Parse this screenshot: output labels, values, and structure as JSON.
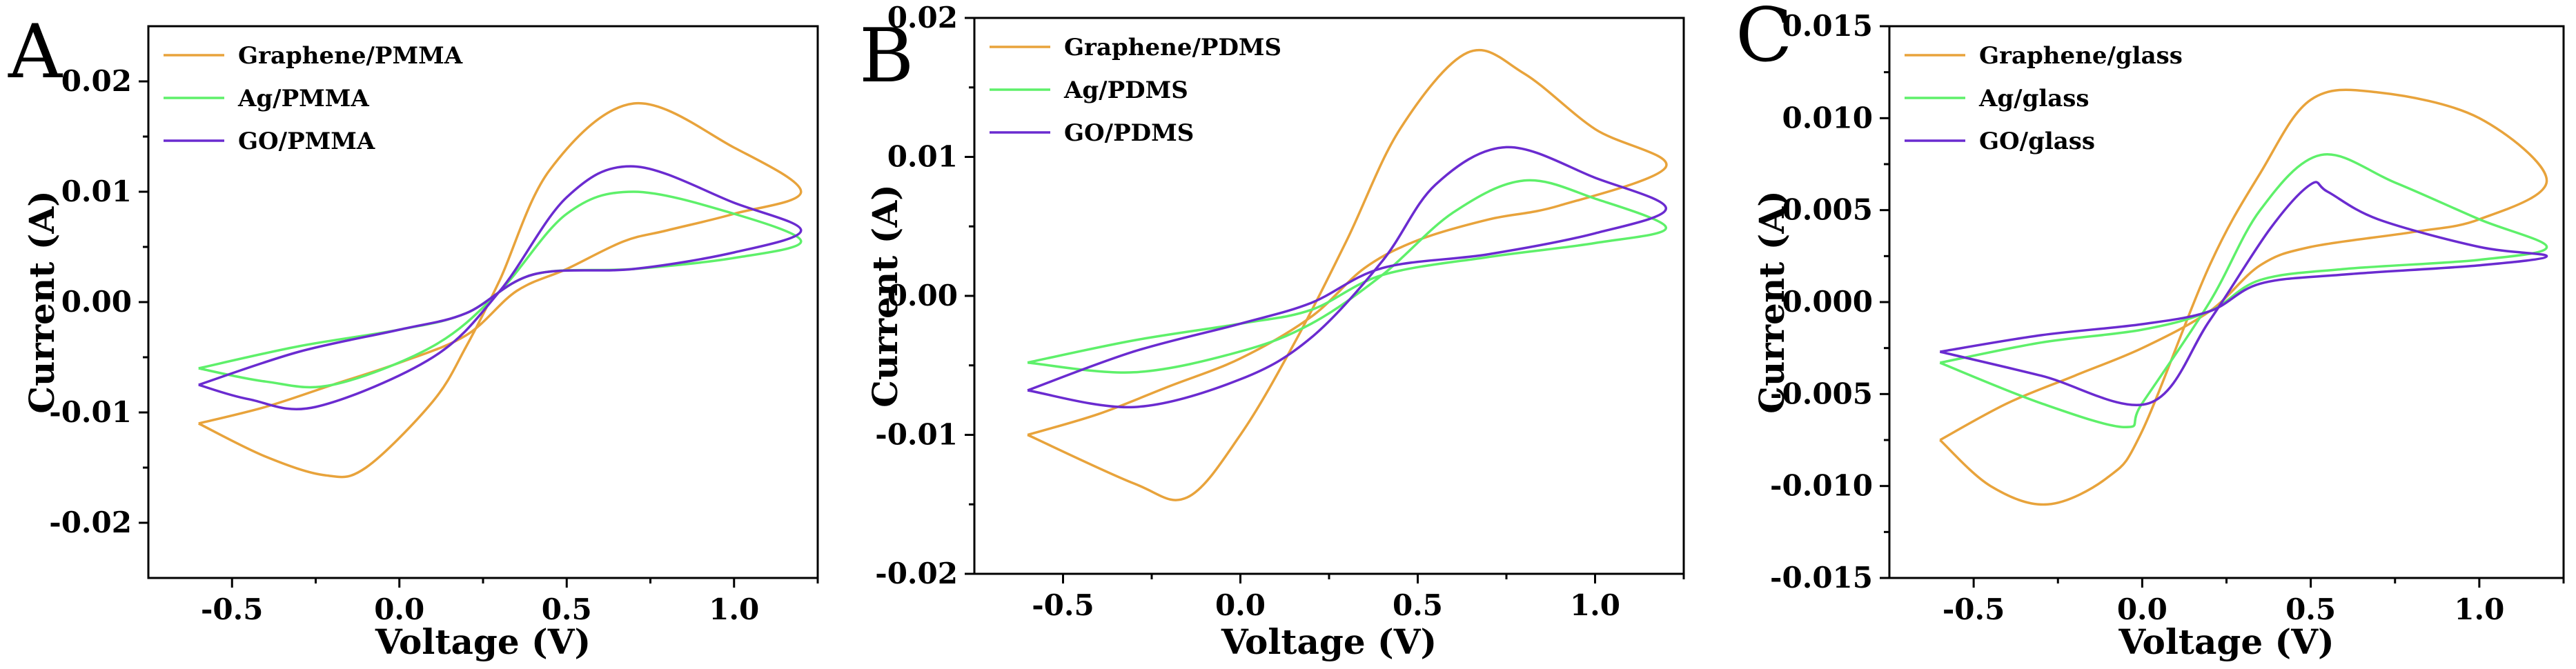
{
  "chart_data": [
    {
      "panel": "A",
      "type": "line",
      "xlabel": "Voltage (V)",
      "ylabel": "Current (A)",
      "xlim": [
        -0.75,
        1.25
      ],
      "ylim": [
        -0.025,
        0.025
      ],
      "xticks": [
        -0.5,
        0.0,
        0.5,
        1.0
      ],
      "xtick_labels": [
        "-0.5",
        "0.0",
        "0.5",
        "1.0"
      ],
      "yticks": [
        -0.02,
        -0.01,
        0.0,
        0.01,
        0.02
      ],
      "ytick_labels": [
        "-0.02",
        "-0.01",
        "0.00",
        "0.01",
        "0.02"
      ],
      "legend_position": "top-left",
      "series": [
        {
          "name": "Graphene/PMMA",
          "color": "#e8a33b",
          "x": [
            -0.6,
            -0.4,
            -0.2,
            0.0,
            0.2,
            0.35,
            0.5,
            0.67,
            0.8,
            1.0,
            1.2,
            1.0,
            0.7,
            0.45,
            0.3,
            0.2,
            0.1,
            -0.1,
            -0.22,
            -0.4,
            -0.6
          ],
          "y": [
            -0.011,
            -0.0095,
            -0.0075,
            -0.0055,
            -0.003,
            0.001,
            0.003,
            0.0055,
            0.0065,
            0.008,
            0.01,
            0.014,
            0.018,
            0.012,
            0.002,
            -0.004,
            -0.009,
            -0.015,
            -0.0157,
            -0.014,
            -0.011
          ]
        },
        {
          "name": "Ag/PMMA",
          "color": "#5ef06a",
          "x": [
            -0.6,
            -0.3,
            0.0,
            0.2,
            0.4,
            0.7,
            1.0,
            1.2,
            1.0,
            0.7,
            0.5,
            0.3,
            0.1,
            -0.2,
            -0.4,
            -0.6
          ],
          "y": [
            -0.006,
            -0.004,
            -0.0025,
            -0.001,
            0.0025,
            0.003,
            0.004,
            0.0055,
            0.008,
            0.01,
            0.008,
            0.001,
            -0.004,
            -0.0075,
            -0.0072,
            -0.006
          ]
        },
        {
          "name": "GO/PMMA",
          "color": "#6a2bd0",
          "x": [
            -0.6,
            -0.3,
            0.0,
            0.2,
            0.4,
            0.7,
            1.0,
            1.2,
            1.0,
            0.7,
            0.5,
            0.3,
            0.1,
            -0.25,
            -0.45,
            -0.6
          ],
          "y": [
            -0.0075,
            -0.0045,
            -0.0025,
            -0.001,
            0.0025,
            0.003,
            0.0045,
            0.0065,
            0.009,
            0.0123,
            0.0095,
            0.001,
            -0.005,
            -0.0095,
            -0.0088,
            -0.0075
          ]
        }
      ]
    },
    {
      "panel": "B",
      "type": "line",
      "xlabel": "Voltage (V)",
      "ylabel": "Current (A)",
      "xlim": [
        -0.75,
        1.25
      ],
      "ylim": [
        -0.02,
        0.02
      ],
      "xticks": [
        -0.5,
        0.0,
        0.5,
        1.0
      ],
      "xtick_labels": [
        "-0.5",
        "0.0",
        "0.5",
        "1.0"
      ],
      "yticks": [
        -0.02,
        -0.01,
        0.0,
        0.01,
        0.02
      ],
      "ytick_labels": [
        "-0.02",
        "-0.01",
        "0.00",
        "0.01",
        "0.02"
      ],
      "legend_position": "top-left",
      "series": [
        {
          "name": "Graphene/PDMS",
          "color": "#e8a33b",
          "x": [
            -0.6,
            -0.4,
            -0.2,
            0.0,
            0.2,
            0.35,
            0.5,
            0.7,
            0.9,
            1.2,
            1.0,
            0.8,
            0.64,
            0.45,
            0.3,
            0.15,
            0.0,
            -0.15,
            -0.3,
            -0.6
          ],
          "y": [
            -0.01,
            -0.0085,
            -0.0065,
            -0.0045,
            -0.0015,
            0.002,
            0.004,
            0.0055,
            0.0065,
            0.0093,
            0.012,
            0.016,
            0.0175,
            0.012,
            0.004,
            -0.0035,
            -0.01,
            -0.0145,
            -0.0135,
            -0.01
          ]
        },
        {
          "name": "Ag/PDMS",
          "color": "#5ef06a",
          "x": [
            -0.6,
            -0.3,
            0.0,
            0.2,
            0.4,
            0.7,
            1.0,
            1.2,
            1.0,
            0.8,
            0.6,
            0.4,
            0.2,
            0.0,
            -0.3,
            -0.6
          ],
          "y": [
            -0.0048,
            -0.0032,
            -0.002,
            -0.001,
            0.0015,
            0.0028,
            0.0038,
            0.0049,
            0.007,
            0.0083,
            0.006,
            0.0015,
            -0.002,
            -0.004,
            -0.0055,
            -0.0048
          ]
        },
        {
          "name": "GO/PDMS",
          "color": "#6a2bd0",
          "x": [
            -0.6,
            -0.3,
            0.0,
            0.2,
            0.4,
            0.7,
            1.0,
            1.2,
            1.0,
            0.75,
            0.55,
            0.4,
            0.2,
            0.0,
            -0.3,
            -0.6
          ],
          "y": [
            -0.0068,
            -0.004,
            -0.002,
            -0.0005,
            0.002,
            0.003,
            0.0045,
            0.0063,
            0.0085,
            0.0107,
            0.008,
            0.0025,
            -0.003,
            -0.006,
            -0.008,
            -0.0068
          ]
        }
      ]
    },
    {
      "panel": "C",
      "type": "line",
      "xlabel": "Voltage (V)",
      "ylabel": "Current (A)",
      "xlim": [
        -0.75,
        1.25
      ],
      "ylim": [
        -0.015,
        0.015
      ],
      "xticks": [
        -0.5,
        0.0,
        0.5,
        1.0
      ],
      "xtick_labels": [
        "-0.5",
        "0.0",
        "0.5",
        "1.0"
      ],
      "yticks": [
        -0.015,
        -0.01,
        -0.005,
        0.0,
        0.005,
        0.01,
        0.015
      ],
      "ytick_labels": [
        "-0.015",
        "-0.010",
        "-0.005",
        "0.000",
        "0.005",
        "0.010",
        "0.015"
      ],
      "legend_position": "top-left",
      "series": [
        {
          "name": "Graphene/glass",
          "color": "#e8a33b",
          "x": [
            -0.6,
            -0.4,
            -0.2,
            0.0,
            0.2,
            0.35,
            0.5,
            0.8,
            1.0,
            1.2,
            1.0,
            0.7,
            0.5,
            0.35,
            0.2,
            0.0,
            -0.1,
            -0.28,
            -0.45,
            -0.6
          ],
          "y": [
            -0.0075,
            -0.0055,
            -0.004,
            -0.0025,
            -0.0005,
            0.002,
            0.003,
            0.0038,
            0.0045,
            0.0066,
            0.01,
            0.0114,
            0.011,
            0.007,
            0.002,
            -0.007,
            -0.0095,
            -0.011,
            -0.01,
            -0.0075
          ]
        },
        {
          "name": "Ag/glass",
          "color": "#5ef06a",
          "x": [
            -0.6,
            -0.3,
            0.0,
            0.2,
            0.35,
            0.6,
            1.0,
            1.2,
            1.0,
            0.75,
            0.53,
            0.35,
            0.2,
            0.0,
            -0.05,
            -0.3,
            -0.6
          ],
          "y": [
            -0.0033,
            -0.0022,
            -0.0015,
            -0.0005,
            0.0012,
            0.0018,
            0.0023,
            0.003,
            0.0045,
            0.0065,
            0.008,
            0.005,
            0.0,
            -0.0055,
            -0.0068,
            -0.0055,
            -0.0033
          ]
        },
        {
          "name": "GO/glass",
          "color": "#6a2bd0",
          "x": [
            -0.6,
            -0.3,
            0.0,
            0.2,
            0.35,
            0.6,
            1.0,
            1.2,
            1.0,
            0.7,
            0.55,
            0.5,
            0.38,
            0.2,
            0.02,
            -0.3,
            -0.6
          ],
          "y": [
            -0.0027,
            -0.0018,
            -0.0012,
            -0.0005,
            0.001,
            0.0015,
            0.002,
            0.0025,
            0.003,
            0.0045,
            0.006,
            0.0064,
            0.004,
            -0.001,
            -0.0055,
            -0.004,
            -0.0027
          ]
        }
      ]
    }
  ]
}
